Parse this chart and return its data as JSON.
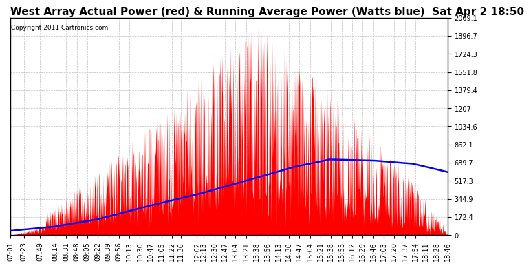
{
  "title": "West Array Actual Power (red) & Running Average Power (Watts blue)  Sat Apr 2 18:50",
  "copyright": "Copyright 2011 Cartronics.com",
  "ymax": 2069.1,
  "ymin": 0.0,
  "yticks": [
    0.0,
    172.4,
    344.9,
    517.3,
    689.7,
    862.1,
    1034.6,
    1207.0,
    1379.4,
    1551.8,
    1724.3,
    1896.7,
    2069.1
  ],
  "xtick_labels": [
    "07:01",
    "07:23",
    "07:49",
    "08:14",
    "08:31",
    "08:48",
    "09:05",
    "09:22",
    "09:39",
    "09:56",
    "10:13",
    "10:30",
    "10:47",
    "11:05",
    "11:22",
    "11:36",
    "12:02",
    "12:13",
    "12:30",
    "12:47",
    "13:04",
    "13:21",
    "13:38",
    "13:56",
    "14:13",
    "14:30",
    "14:47",
    "15:04",
    "15:21",
    "15:38",
    "15:55",
    "16:12",
    "16:29",
    "16:46",
    "17:03",
    "17:20",
    "17:37",
    "17:54",
    "18:11",
    "18:28",
    "18:46"
  ],
  "bg_color": "#ffffff",
  "plot_bg_color": "#ffffff",
  "grid_color": "#b0b0b0",
  "actual_color": "red",
  "avg_color": "blue",
  "title_fontsize": 11,
  "tick_fontsize": 7,
  "border_color": "#000000"
}
